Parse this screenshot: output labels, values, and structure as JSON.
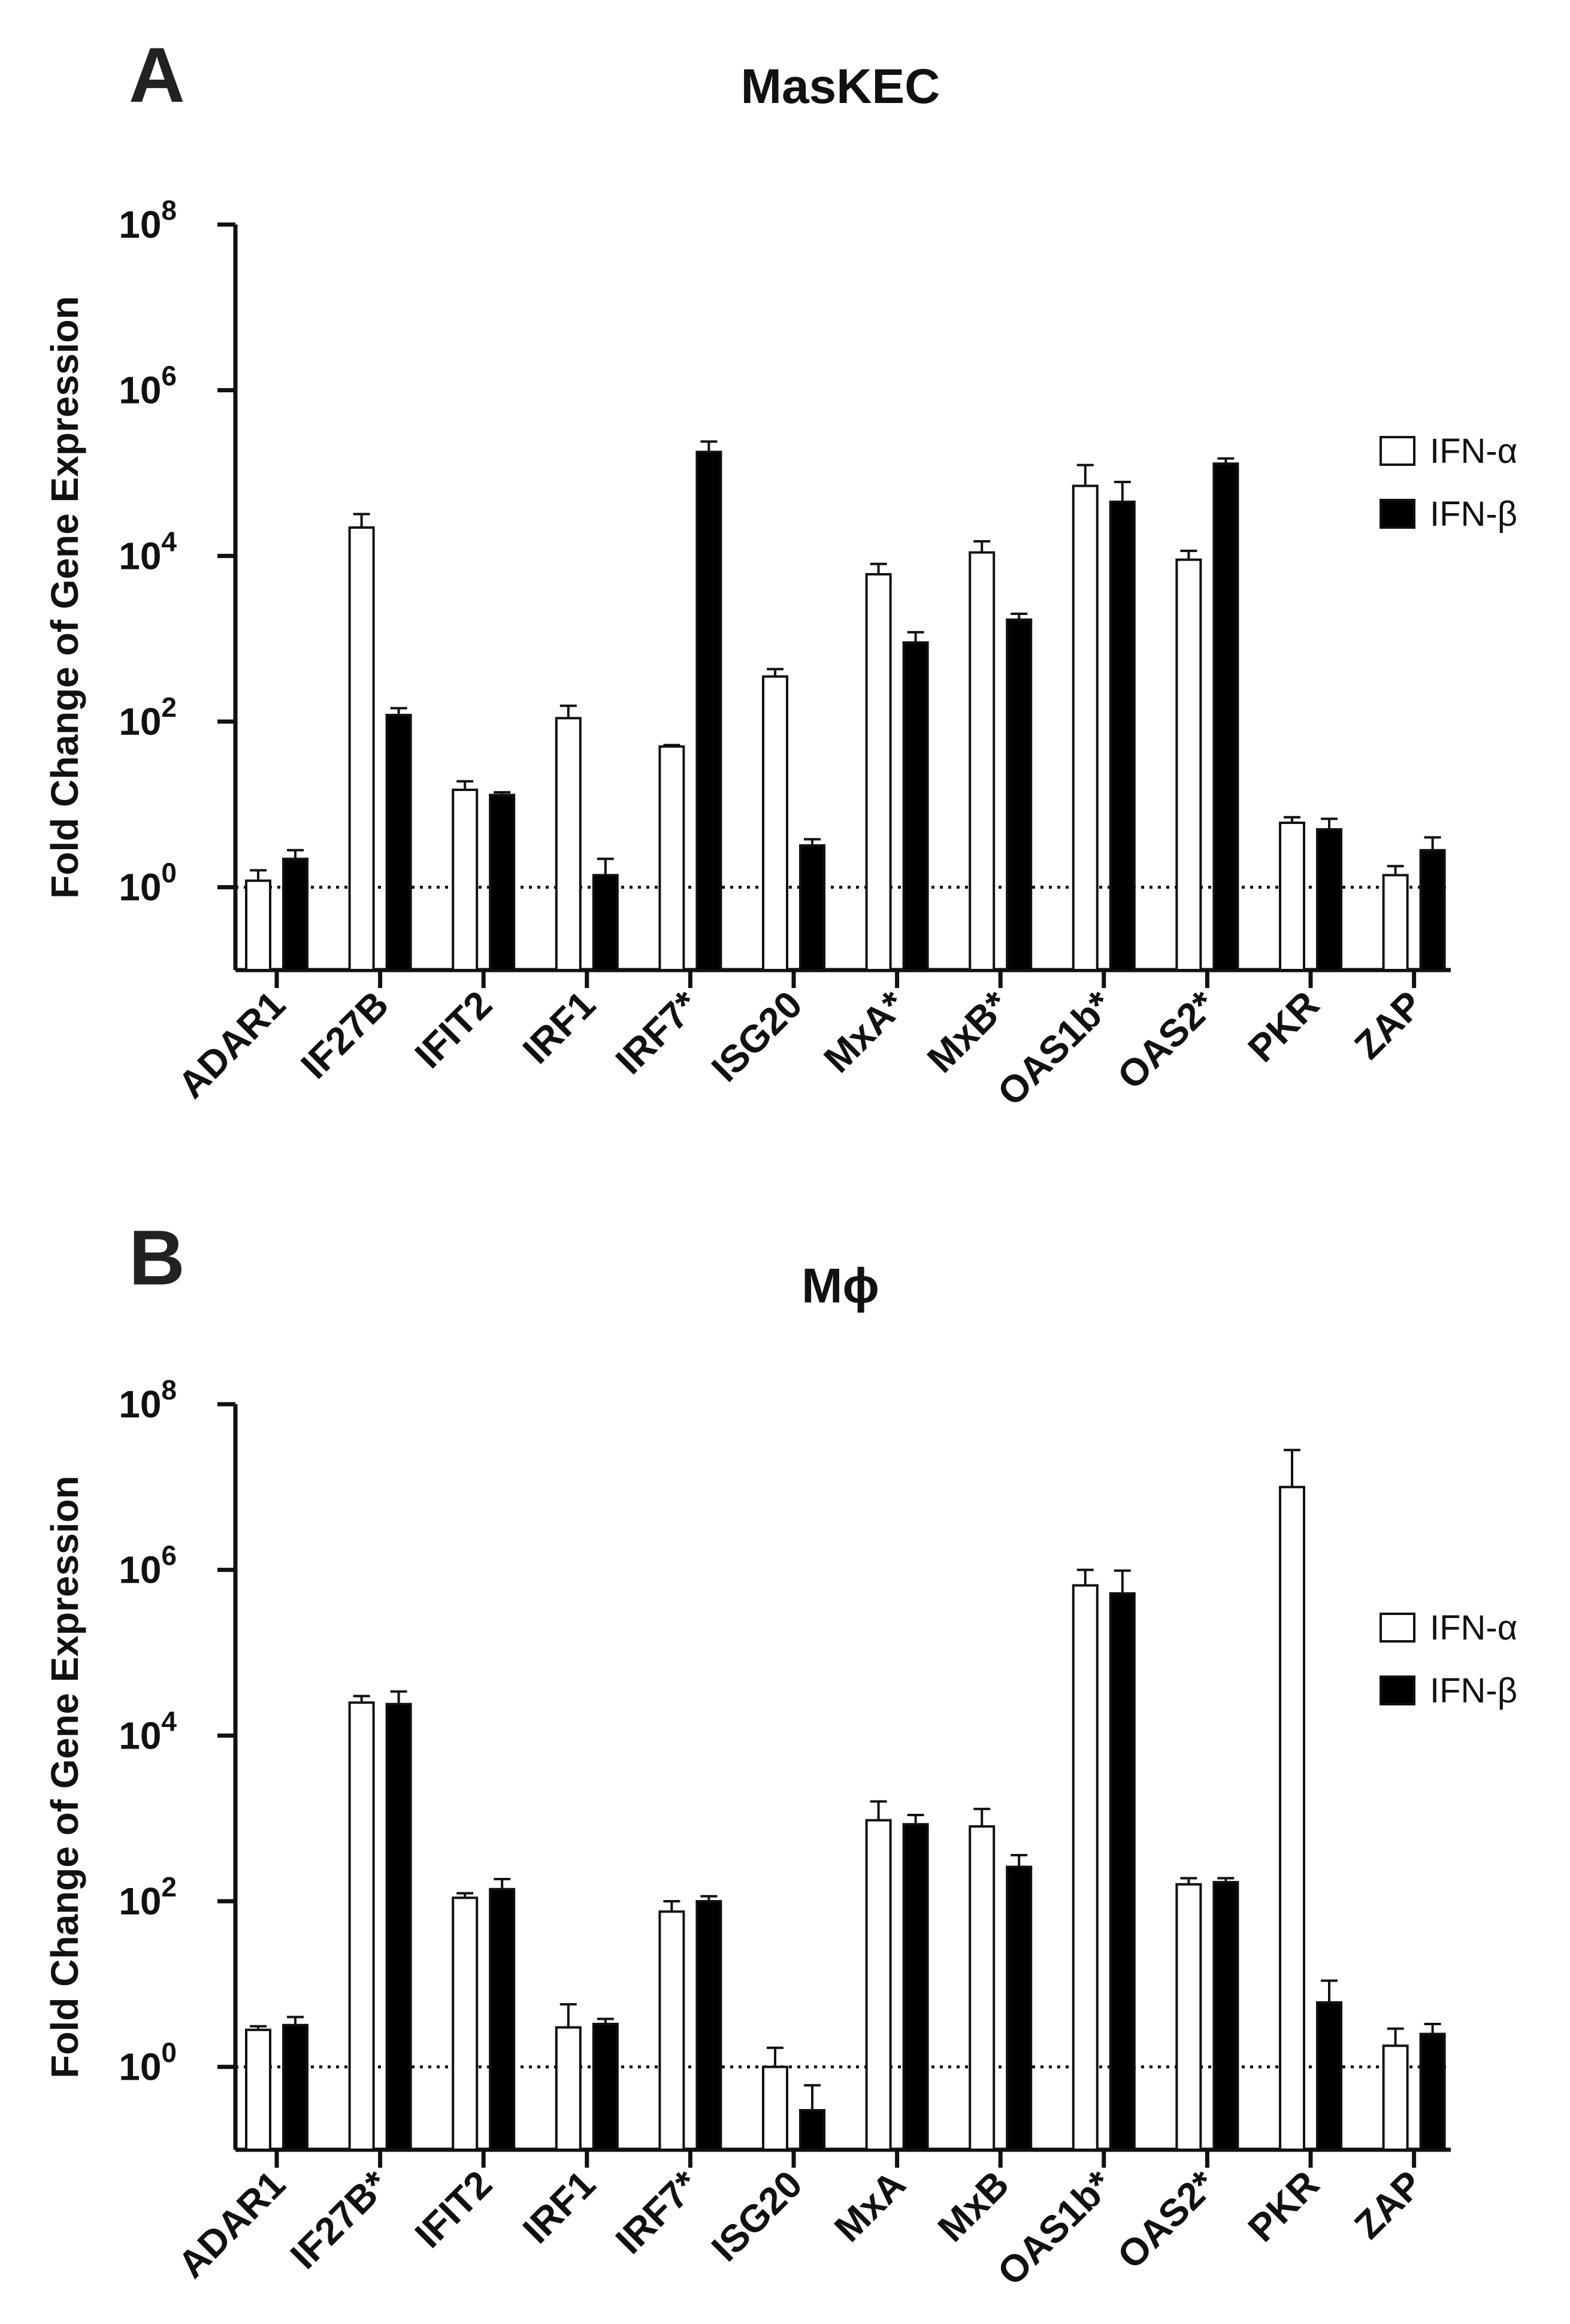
{
  "chart_data": [
    {
      "type": "bar",
      "panel": "A",
      "title": "MasKEC",
      "ylabel": "Fold Change of Gene Expression",
      "yscale": "log",
      "ylim": [
        0.1,
        100000000
      ],
      "yticks": [
        {
          "base": "10",
          "exp": "0"
        },
        {
          "base": "10",
          "exp": "2"
        },
        {
          "base": "10",
          "exp": "4"
        },
        {
          "base": "10",
          "exp": "6"
        },
        {
          "base": "10",
          "exp": "8"
        }
      ],
      "reference_line": 1,
      "categories": [
        "ADAR1",
        "IF27B",
        "IFIT2",
        "IRF1",
        "IRF7*",
        "ISG20",
        "MxA*",
        "MxB*",
        "OAS1b*",
        "OAS2*",
        "PKR",
        "ZAP"
      ],
      "series": [
        {
          "name": "IFN-α",
          "fill": "#ffffff",
          "values": [
            1.2,
            22000,
            15,
            110,
            50,
            350,
            6000,
            11000,
            70000,
            9000,
            6,
            1.4
          ],
          "err": [
            1.6,
            32000,
            19,
            155,
            52,
            430,
            8000,
            15000,
            125000,
            11500,
            7,
            1.8
          ]
        },
        {
          "name": "IFN-β",
          "fill": "#000000",
          "values": [
            2.2,
            120,
            13,
            1.4,
            180000,
            3.2,
            900,
            1700,
            45000,
            130000,
            5,
            2.8
          ],
          "err": [
            2.8,
            145,
            14,
            2.2,
            240000,
            3.8,
            1200,
            2000,
            78000,
            150000,
            6.7,
            4
          ]
        }
      ],
      "legend": [
        "IFN-α",
        "IFN-β"
      ]
    },
    {
      "type": "bar",
      "panel": "B",
      "title": "Mϕ",
      "ylabel": "Fold Change of Gene Expression",
      "yscale": "log",
      "ylim": [
        0.1,
        100000000
      ],
      "yticks": [
        {
          "base": "10",
          "exp": "0"
        },
        {
          "base": "10",
          "exp": "2"
        },
        {
          "base": "10",
          "exp": "4"
        },
        {
          "base": "10",
          "exp": "6"
        },
        {
          "base": "10",
          "exp": "8"
        }
      ],
      "reference_line": 1,
      "categories": [
        "ADAR1",
        "IF27B*",
        "IFIT2",
        "IRF1",
        "IRF7*",
        "ISG20",
        "MxA",
        "MxB",
        "OAS1b*",
        "OAS2*",
        "PKR",
        "ZAP"
      ],
      "series": [
        {
          "name": "IFN-α",
          "fill": "#ffffff",
          "values": [
            2.8,
            25000,
            110,
            3,
            75,
            1,
            950,
            800,
            650000,
            160,
            10000000,
            1.8
          ],
          "err": [
            3.1,
            30000,
            125,
            5.7,
            100,
            1.7,
            1600,
            1300,
            1000000,
            190,
            28000000,
            2.9
          ]
        },
        {
          "name": "IFN-β",
          "fill": "#000000",
          "values": [
            3.2,
            24000,
            140,
            3.3,
            100,
            0.3,
            850,
            260,
            520000,
            170,
            6,
            2.5
          ],
          "err": [
            4,
            34000,
            185,
            3.8,
            115,
            0.6,
            1100,
            360,
            980000,
            190,
            11,
            3.3
          ]
        }
      ],
      "legend": [
        "IFN-α",
        "IFN-β"
      ]
    }
  ]
}
